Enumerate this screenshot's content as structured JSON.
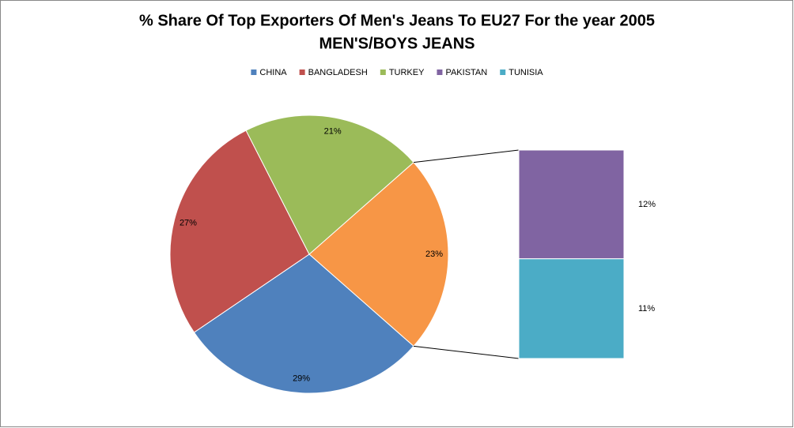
{
  "chart_data": {
    "type": "bar-of-pie",
    "title": "% Share Of Top Exporters Of Men's Jeans To EU27 For the year 2005",
    "subtitle": "MEN'S/BOYS JEANS",
    "pie": {
      "categories": [
        "CHINA",
        "BANGLADESH",
        "TURKEY"
      ],
      "values": [
        29,
        27,
        21
      ],
      "value_labels": [
        "29%",
        "27%",
        "21%"
      ],
      "colors": [
        "#4f81bd",
        "#c0504d",
        "#9bbb59"
      ]
    },
    "other_value": 23,
    "other_value_label": "23%",
    "other_color": "#f79646",
    "bar": {
      "categories": [
        "PAKISTAN",
        "TUNISIA"
      ],
      "values": [
        12,
        11
      ],
      "value_labels": [
        "12%",
        "11%"
      ],
      "colors": [
        "#8064a2",
        "#4bacc6"
      ]
    }
  }
}
